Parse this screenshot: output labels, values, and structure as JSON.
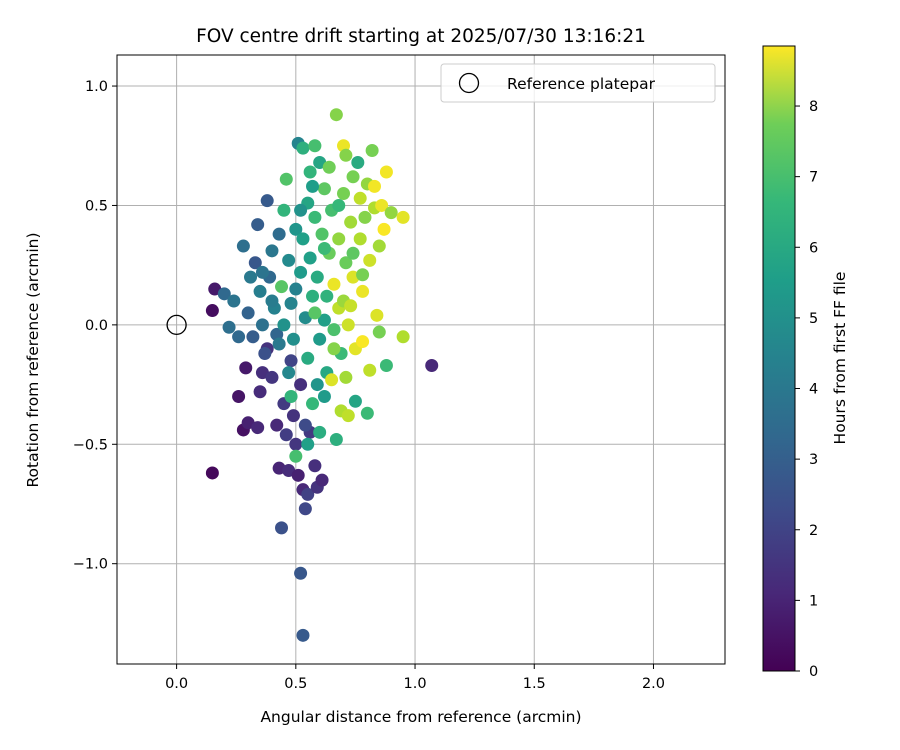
{
  "chart_data": {
    "type": "scatter",
    "title": "FOV centre drift starting at 2025/07/30 13:16:21",
    "xlabel": "Angular distance from reference (arcmin)",
    "ylabel": "Rotation from reference (arcmin)",
    "xlim": [
      -0.25,
      2.3
    ],
    "ylim": [
      -1.42,
      1.13
    ],
    "xticks": [
      0.0,
      0.5,
      1.0,
      1.5,
      2.0
    ],
    "xtick_labels": [
      "0.0",
      "0.5",
      "1.0",
      "1.5",
      "2.0"
    ],
    "yticks": [
      -1.0,
      -0.5,
      0.0,
      0.5,
      1.0
    ],
    "ytick_labels": [
      "−1.0",
      "−0.5",
      "0.0",
      "0.5",
      "1.0"
    ],
    "grid": true,
    "legend": {
      "position": "top-right",
      "entries": [
        {
          "label": "Reference platepar",
          "marker": "open-circle"
        }
      ]
    },
    "reference_point": {
      "x": 0.0,
      "y": 0.0
    },
    "colorbar": {
      "label": "Hours from first FF file",
      "colormap": "viridis",
      "range": [
        0,
        8.85
      ],
      "ticks": [
        0,
        1,
        2,
        3,
        4,
        5,
        6,
        7,
        8
      ],
      "tick_labels": [
        "0",
        "1",
        "2",
        "3",
        "4",
        "5",
        "6",
        "7",
        "8"
      ]
    },
    "points": [
      {
        "x": 0.15,
        "y": 0.06,
        "h": 0.3
      },
      {
        "x": 0.16,
        "y": 0.15,
        "h": 0.6
      },
      {
        "x": 0.15,
        "y": -0.62,
        "h": 0.2
      },
      {
        "x": 0.26,
        "y": -0.3,
        "h": 0.5
      },
      {
        "x": 0.28,
        "y": -0.44,
        "h": 0.4
      },
      {
        "x": 0.3,
        "y": -0.41,
        "h": 0.8
      },
      {
        "x": 0.29,
        "y": -0.18,
        "h": 0.6
      },
      {
        "x": 0.34,
        "y": -0.43,
        "h": 1.0
      },
      {
        "x": 0.35,
        "y": -0.28,
        "h": 1.1
      },
      {
        "x": 0.36,
        "y": -0.2,
        "h": 1.2
      },
      {
        "x": 0.38,
        "y": -0.1,
        "h": 1.3
      },
      {
        "x": 0.4,
        "y": -0.22,
        "h": 1.4
      },
      {
        "x": 0.42,
        "y": -0.42,
        "h": 1.0
      },
      {
        "x": 0.43,
        "y": -0.6,
        "h": 0.9
      },
      {
        "x": 0.44,
        "y": -0.85,
        "h": 2.2
      },
      {
        "x": 0.45,
        "y": -0.33,
        "h": 1.5
      },
      {
        "x": 0.46,
        "y": -0.46,
        "h": 1.6
      },
      {
        "x": 0.47,
        "y": -0.61,
        "h": 1.1
      },
      {
        "x": 0.48,
        "y": -0.15,
        "h": 1.8
      },
      {
        "x": 0.49,
        "y": -0.38,
        "h": 1.3
      },
      {
        "x": 0.5,
        "y": -0.5,
        "h": 1.4
      },
      {
        "x": 0.51,
        "y": -0.63,
        "h": 0.8
      },
      {
        "x": 0.52,
        "y": -1.04,
        "h": 2.4
      },
      {
        "x": 0.53,
        "y": -1.3,
        "h": 2.5
      },
      {
        "x": 0.53,
        "y": -0.69,
        "h": 1.0
      },
      {
        "x": 0.54,
        "y": -0.77,
        "h": 1.9
      },
      {
        "x": 0.55,
        "y": -0.71,
        "h": 1.7
      },
      {
        "x": 0.56,
        "y": -0.45,
        "h": 1.5
      },
      {
        "x": 0.58,
        "y": -0.59,
        "h": 1.2
      },
      {
        "x": 0.59,
        "y": -0.68,
        "h": 1.3
      },
      {
        "x": 0.61,
        "y": -0.65,
        "h": 1.0
      },
      {
        "x": 0.54,
        "y": -0.42,
        "h": 2.0
      },
      {
        "x": 0.52,
        "y": -0.25,
        "h": 1.2
      },
      {
        "x": 0.2,
        "y": 0.13,
        "h": 3.0
      },
      {
        "x": 0.22,
        "y": -0.01,
        "h": 3.2
      },
      {
        "x": 0.24,
        "y": 0.1,
        "h": 3.4
      },
      {
        "x": 0.26,
        "y": -0.05,
        "h": 3.0
      },
      {
        "x": 0.28,
        "y": 0.33,
        "h": 3.2
      },
      {
        "x": 0.3,
        "y": 0.05,
        "h": 2.8
      },
      {
        "x": 0.31,
        "y": 0.2,
        "h": 3.6
      },
      {
        "x": 0.32,
        "y": -0.05,
        "h": 2.6
      },
      {
        "x": 0.33,
        "y": 0.26,
        "h": 2.4
      },
      {
        "x": 0.34,
        "y": 0.42,
        "h": 2.6
      },
      {
        "x": 0.35,
        "y": 0.14,
        "h": 3.8
      },
      {
        "x": 0.36,
        "y": 0.0,
        "h": 3.3
      },
      {
        "x": 0.37,
        "y": -0.12,
        "h": 2.2
      },
      {
        "x": 0.38,
        "y": 0.52,
        "h": 2.5
      },
      {
        "x": 0.39,
        "y": 0.2,
        "h": 3.0
      },
      {
        "x": 0.4,
        "y": 0.31,
        "h": 3.5
      },
      {
        "x": 0.41,
        "y": 0.07,
        "h": 3.9
      },
      {
        "x": 0.42,
        "y": -0.04,
        "h": 2.9
      },
      {
        "x": 0.43,
        "y": 0.38,
        "h": 3.1
      },
      {
        "x": 0.44,
        "y": 0.16,
        "h": 6.5
      },
      {
        "x": 0.45,
        "y": 0.48,
        "h": 5.8
      },
      {
        "x": 0.46,
        "y": 0.61,
        "h": 6.4
      },
      {
        "x": 0.47,
        "y": 0.27,
        "h": 4.2
      },
      {
        "x": 0.48,
        "y": 0.09,
        "h": 4.0
      },
      {
        "x": 0.48,
        "y": -0.3,
        "h": 5.8
      },
      {
        "x": 0.49,
        "y": -0.06,
        "h": 4.4
      },
      {
        "x": 0.5,
        "y": 0.4,
        "h": 4.6
      },
      {
        "x": 0.5,
        "y": -0.55,
        "h": 6.2
      },
      {
        "x": 0.51,
        "y": 0.76,
        "h": 4.0
      },
      {
        "x": 0.52,
        "y": 0.22,
        "h": 4.8
      },
      {
        "x": 0.53,
        "y": 0.36,
        "h": 5.0
      },
      {
        "x": 0.53,
        "y": 0.74,
        "h": 5.6
      },
      {
        "x": 0.54,
        "y": 0.03,
        "h": 4.3
      },
      {
        "x": 0.55,
        "y": 0.51,
        "h": 5.2
      },
      {
        "x": 0.55,
        "y": -0.14,
        "h": 5.4
      },
      {
        "x": 0.56,
        "y": 0.64,
        "h": 5.8
      },
      {
        "x": 0.56,
        "y": 0.28,
        "h": 5.0
      },
      {
        "x": 0.57,
        "y": 0.12,
        "h": 5.6
      },
      {
        "x": 0.57,
        "y": -0.33,
        "h": 5.9
      },
      {
        "x": 0.58,
        "y": 0.75,
        "h": 6.2
      },
      {
        "x": 0.58,
        "y": 0.45,
        "h": 6.0
      },
      {
        "x": 0.59,
        "y": 0.2,
        "h": 5.4
      },
      {
        "x": 0.6,
        "y": 0.68,
        "h": 5.2
      },
      {
        "x": 0.6,
        "y": -0.06,
        "h": 4.8
      },
      {
        "x": 0.61,
        "y": 0.38,
        "h": 6.4
      },
      {
        "x": 0.62,
        "y": 0.57,
        "h": 6.6
      },
      {
        "x": 0.62,
        "y": 0.02,
        "h": 5.0
      },
      {
        "x": 0.63,
        "y": -0.2,
        "h": 5.3
      },
      {
        "x": 0.64,
        "y": 0.3,
        "h": 6.8
      },
      {
        "x": 0.64,
        "y": 0.66,
        "h": 6.9
      },
      {
        "x": 0.65,
        "y": 0.48,
        "h": 6.2
      },
      {
        "x": 0.65,
        "y": -0.23,
        "h": 8.4
      },
      {
        "x": 0.66,
        "y": 0.17,
        "h": 8.6
      },
      {
        "x": 0.67,
        "y": 0.88,
        "h": 7.2
      },
      {
        "x": 0.67,
        "y": -0.48,
        "h": 5.6
      },
      {
        "x": 0.68,
        "y": 0.36,
        "h": 7.4
      },
      {
        "x": 0.68,
        "y": 0.07,
        "h": 8.0
      },
      {
        "x": 0.69,
        "y": -0.12,
        "h": 6.0
      },
      {
        "x": 0.69,
        "y": -0.36,
        "h": 7.8
      },
      {
        "x": 0.7,
        "y": 0.75,
        "h": 8.6
      },
      {
        "x": 0.7,
        "y": 0.55,
        "h": 7.0
      },
      {
        "x": 0.71,
        "y": 0.71,
        "h": 7.2
      },
      {
        "x": 0.71,
        "y": 0.26,
        "h": 6.8
      },
      {
        "x": 0.72,
        "y": 0.0,
        "h": 8.2
      },
      {
        "x": 0.72,
        "y": -0.38,
        "h": 8.0
      },
      {
        "x": 0.73,
        "y": 0.43,
        "h": 7.6
      },
      {
        "x": 0.74,
        "y": 0.62,
        "h": 7.0
      },
      {
        "x": 0.74,
        "y": 0.2,
        "h": 8.4
      },
      {
        "x": 0.75,
        "y": -0.1,
        "h": 8.5
      },
      {
        "x": 0.75,
        "y": -0.32,
        "h": 5.2
      },
      {
        "x": 0.76,
        "y": 0.68,
        "h": 5.4
      },
      {
        "x": 0.77,
        "y": 0.36,
        "h": 7.8
      },
      {
        "x": 0.77,
        "y": 0.53,
        "h": 8.0
      },
      {
        "x": 0.78,
        "y": 0.14,
        "h": 8.6
      },
      {
        "x": 0.78,
        "y": -0.07,
        "h": 8.8
      },
      {
        "x": 0.79,
        "y": 0.45,
        "h": 7.2
      },
      {
        "x": 0.8,
        "y": 0.59,
        "h": 7.4
      },
      {
        "x": 0.8,
        "y": -0.37,
        "h": 6.0
      },
      {
        "x": 0.81,
        "y": 0.27,
        "h": 8.2
      },
      {
        "x": 0.81,
        "y": -0.19,
        "h": 8.0
      },
      {
        "x": 0.82,
        "y": 0.73,
        "h": 7.0
      },
      {
        "x": 0.83,
        "y": 0.49,
        "h": 7.8
      },
      {
        "x": 0.83,
        "y": 0.58,
        "h": 8.7
      },
      {
        "x": 0.84,
        "y": 0.04,
        "h": 8.4
      },
      {
        "x": 0.85,
        "y": 0.33,
        "h": 7.6
      },
      {
        "x": 0.85,
        "y": -0.03,
        "h": 7.0
      },
      {
        "x": 0.86,
        "y": 0.5,
        "h": 8.6
      },
      {
        "x": 0.87,
        "y": 0.4,
        "h": 8.8
      },
      {
        "x": 0.88,
        "y": 0.64,
        "h": 8.7
      },
      {
        "x": 0.88,
        "y": -0.17,
        "h": 6.0
      },
      {
        "x": 0.9,
        "y": 0.47,
        "h": 7.4
      },
      {
        "x": 0.95,
        "y": 0.45,
        "h": 8.5
      },
      {
        "x": 0.95,
        "y": -0.05,
        "h": 7.8
      },
      {
        "x": 1.07,
        "y": -0.17,
        "h": 1.0
      },
      {
        "x": 0.62,
        "y": -0.3,
        "h": 4.8
      },
      {
        "x": 0.6,
        "y": -0.45,
        "h": 5.5
      },
      {
        "x": 0.55,
        "y": -0.5,
        "h": 5.0
      },
      {
        "x": 0.58,
        "y": 0.05,
        "h": 6.5
      },
      {
        "x": 0.66,
        "y": -0.1,
        "h": 7.2
      },
      {
        "x": 0.7,
        "y": 0.1,
        "h": 7.5
      },
      {
        "x": 0.62,
        "y": 0.32,
        "h": 6.0
      },
      {
        "x": 0.45,
        "y": 0.0,
        "h": 4.5
      },
      {
        "x": 0.4,
        "y": 0.1,
        "h": 3.7
      },
      {
        "x": 0.36,
        "y": 0.22,
        "h": 3.4
      },
      {
        "x": 0.5,
        "y": 0.15,
        "h": 3.9
      },
      {
        "x": 0.47,
        "y": -0.2,
        "h": 4.1
      },
      {
        "x": 0.43,
        "y": -0.08,
        "h": 3.6
      },
      {
        "x": 0.74,
        "y": 0.3,
        "h": 6.6
      },
      {
        "x": 0.78,
        "y": 0.21,
        "h": 7.0
      },
      {
        "x": 0.68,
        "y": 0.5,
        "h": 5.9
      },
      {
        "x": 0.57,
        "y": 0.58,
        "h": 4.9
      },
      {
        "x": 0.52,
        "y": 0.48,
        "h": 4.5
      },
      {
        "x": 0.63,
        "y": 0.12,
        "h": 5.7
      },
      {
        "x": 0.59,
        "y": -0.25,
        "h": 4.6
      },
      {
        "x": 0.66,
        "y": -0.02,
        "h": 6.3
      },
      {
        "x": 0.71,
        "y": -0.22,
        "h": 7.6
      },
      {
        "x": 0.73,
        "y": 0.08,
        "h": 8.1
      }
    ]
  }
}
